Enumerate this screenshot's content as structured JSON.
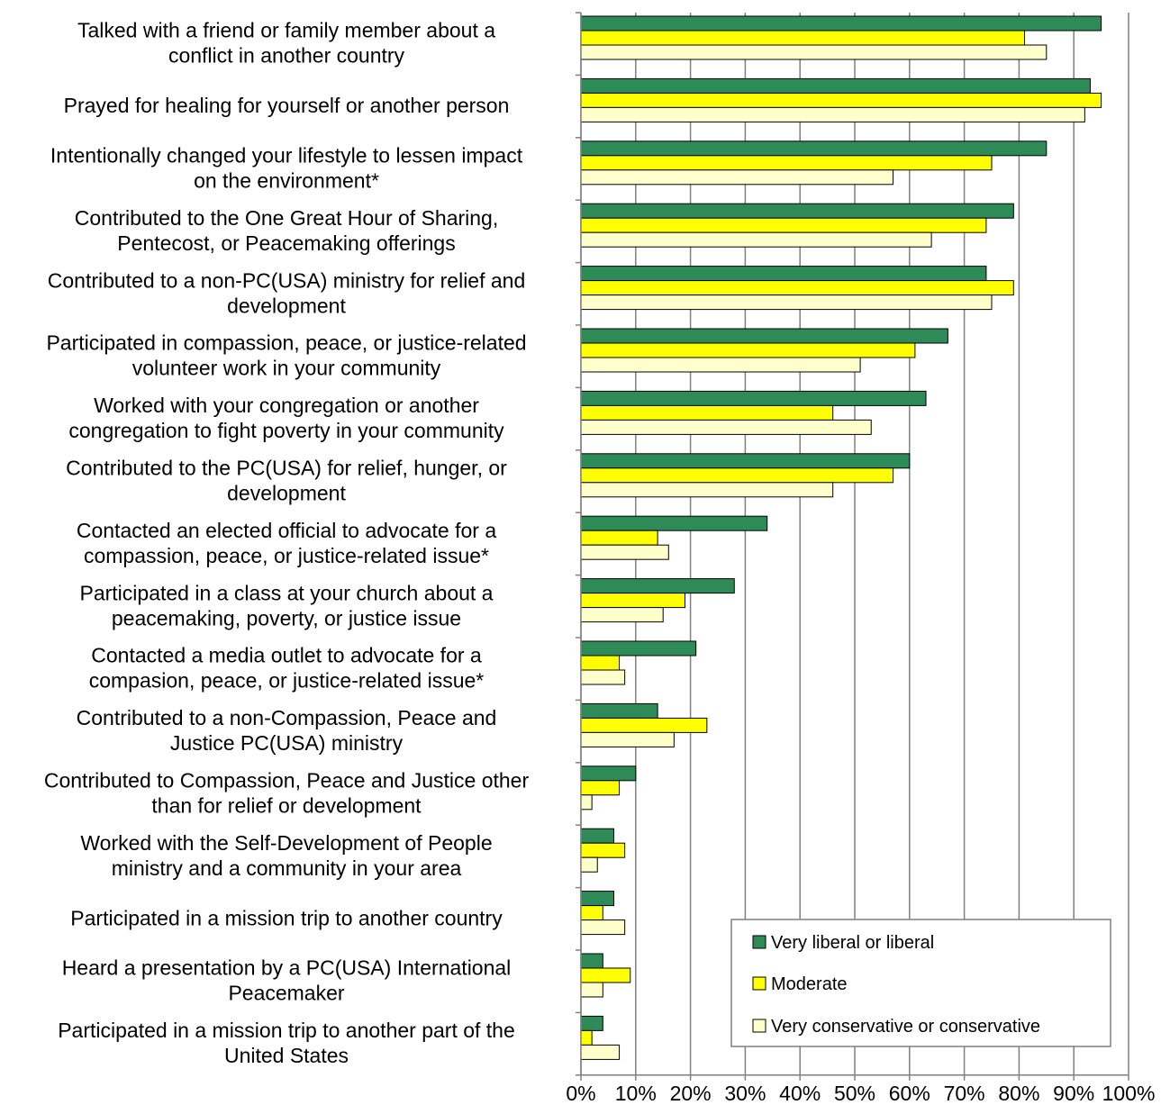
{
  "chart_data": {
    "type": "bar",
    "orientation": "horizontal",
    "categories": [
      [
        "Talked with a friend or family member about a",
        "conflict in another country"
      ],
      [
        "Prayed for healing for yourself or another person"
      ],
      [
        "Intentionally changed your lifestyle to lessen impact",
        "on the environment*"
      ],
      [
        "Contributed to the One Great Hour of Sharing,",
        "Pentecost, or Peacemaking offerings"
      ],
      [
        "Contributed to a non-PC(USA) ministry for relief and",
        "development"
      ],
      [
        "Participated in compassion, peace, or justice-related",
        "volunteer work in your community"
      ],
      [
        "Worked with your congregation or another",
        "congregation to fight poverty in your community"
      ],
      [
        "Contributed to the PC(USA) for relief, hunger, or",
        "development"
      ],
      [
        "Contacted an elected official to advocate for a",
        "compassion, peace, or justice-related issue*"
      ],
      [
        "Participated in a class at your church about a",
        "peacemaking, poverty, or justice issue"
      ],
      [
        "Contacted a media outlet to advocate for a",
        "compasion, peace, or justice-related issue*"
      ],
      [
        "Contributed to a non-Compassion, Peace and",
        "Justice PC(USA) ministry"
      ],
      [
        "Contributed to Compassion, Peace and Justice other",
        "than for relief or development"
      ],
      [
        "Worked with the Self-Development of People",
        "ministry and a community in your area"
      ],
      [
        "Participated in a mission trip to another country"
      ],
      [
        "Heard a presentation by a PC(USA) International",
        "Peacemaker"
      ],
      [
        "Participated in a mission trip to another part of the",
        "United States"
      ]
    ],
    "series": [
      {
        "name": "Very liberal or liberal",
        "color": "#2e8b57",
        "values": [
          95,
          93,
          85,
          79,
          74,
          67,
          63,
          60,
          34,
          28,
          21,
          14,
          10,
          6,
          6,
          4,
          4
        ]
      },
      {
        "name": "Moderate",
        "color": "#ffff00",
        "values": [
          81,
          95,
          75,
          74,
          79,
          61,
          46,
          57,
          14,
          19,
          7,
          23,
          7,
          8,
          4,
          9,
          2
        ]
      },
      {
        "name": "Very conservative or conservative",
        "color": "#ffffcc",
        "values": [
          85,
          92,
          57,
          64,
          75,
          51,
          53,
          46,
          16,
          15,
          8,
          17,
          2,
          3,
          8,
          4,
          7
        ]
      }
    ],
    "xlim": [
      0,
      100
    ],
    "x_ticks": [
      "0%",
      "10%",
      "20%",
      "30%",
      "40%",
      "50%",
      "60%",
      "70%",
      "80%",
      "90%",
      "100%"
    ],
    "grid": "vertical",
    "legend_position": "bottom-right"
  }
}
